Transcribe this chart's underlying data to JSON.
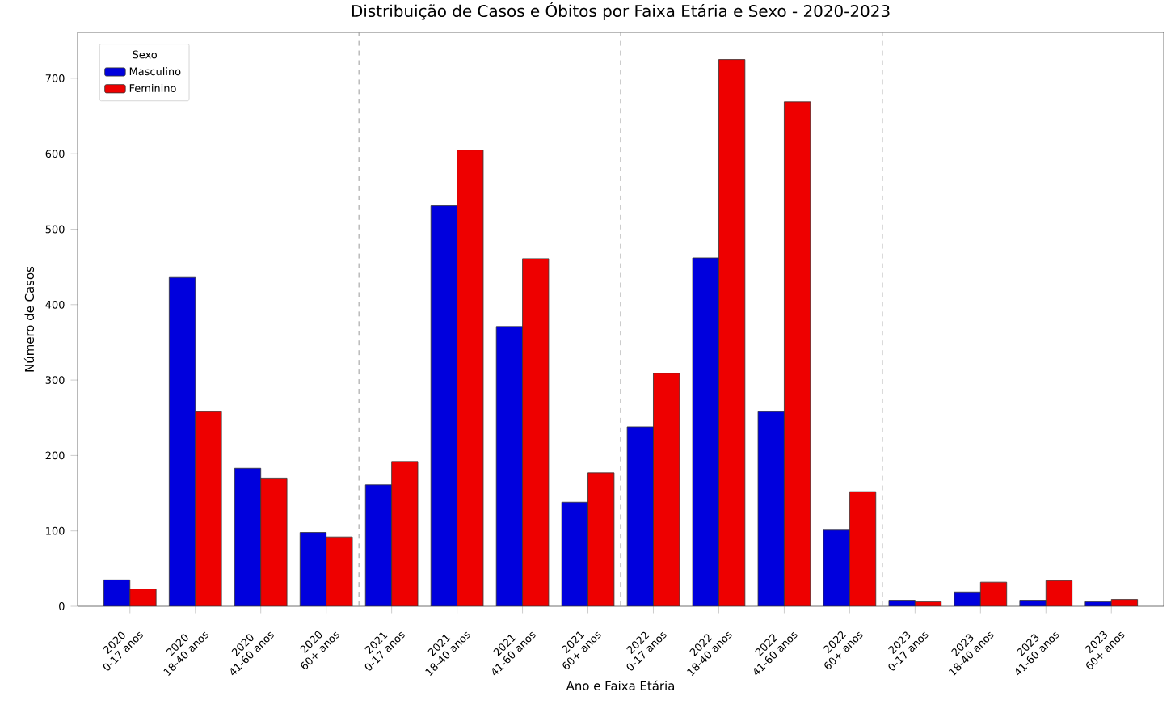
{
  "chart_data": {
    "type": "bar",
    "title": "Distribuição de Casos e Óbitos por Faixa Etária e Sexo - 2020-2023",
    "xlabel": "Ano e Faixa Etária",
    "ylabel": "Número de Casos",
    "legend_title": "Sexo",
    "categories": [
      "2020\n0-17 anos",
      "2020\n18-40 anos",
      "2020\n41-60 anos",
      "2020\n60+ anos",
      "2021\n0-17 anos",
      "2021\n18-40 anos",
      "2021\n41-60 anos",
      "2021\n60+ anos",
      "2022\n0-17 anos",
      "2022\n18-40 anos",
      "2022\n41-60 anos",
      "2022\n60+ anos",
      "2023\n0-17 anos",
      "2023\n18-40 anos",
      "2023\n41-60 anos",
      "2023\n60+ anos"
    ],
    "series": [
      {
        "name": "Masculino",
        "color": "#0000dd",
        "values": [
          35,
          436,
          183,
          98,
          161,
          531,
          371,
          138,
          238,
          462,
          258,
          101,
          8,
          19,
          8,
          6
        ]
      },
      {
        "name": "Feminino",
        "color": "#ee0000",
        "values": [
          23,
          258,
          170,
          92,
          192,
          605,
          461,
          177,
          309,
          725,
          669,
          152,
          6,
          32,
          34,
          9
        ]
      }
    ],
    "ylim": [
      0,
      761
    ],
    "yticks": [
      0,
      100,
      200,
      300,
      400,
      500,
      600,
      700
    ],
    "grid": false,
    "legend": "top left"
  }
}
